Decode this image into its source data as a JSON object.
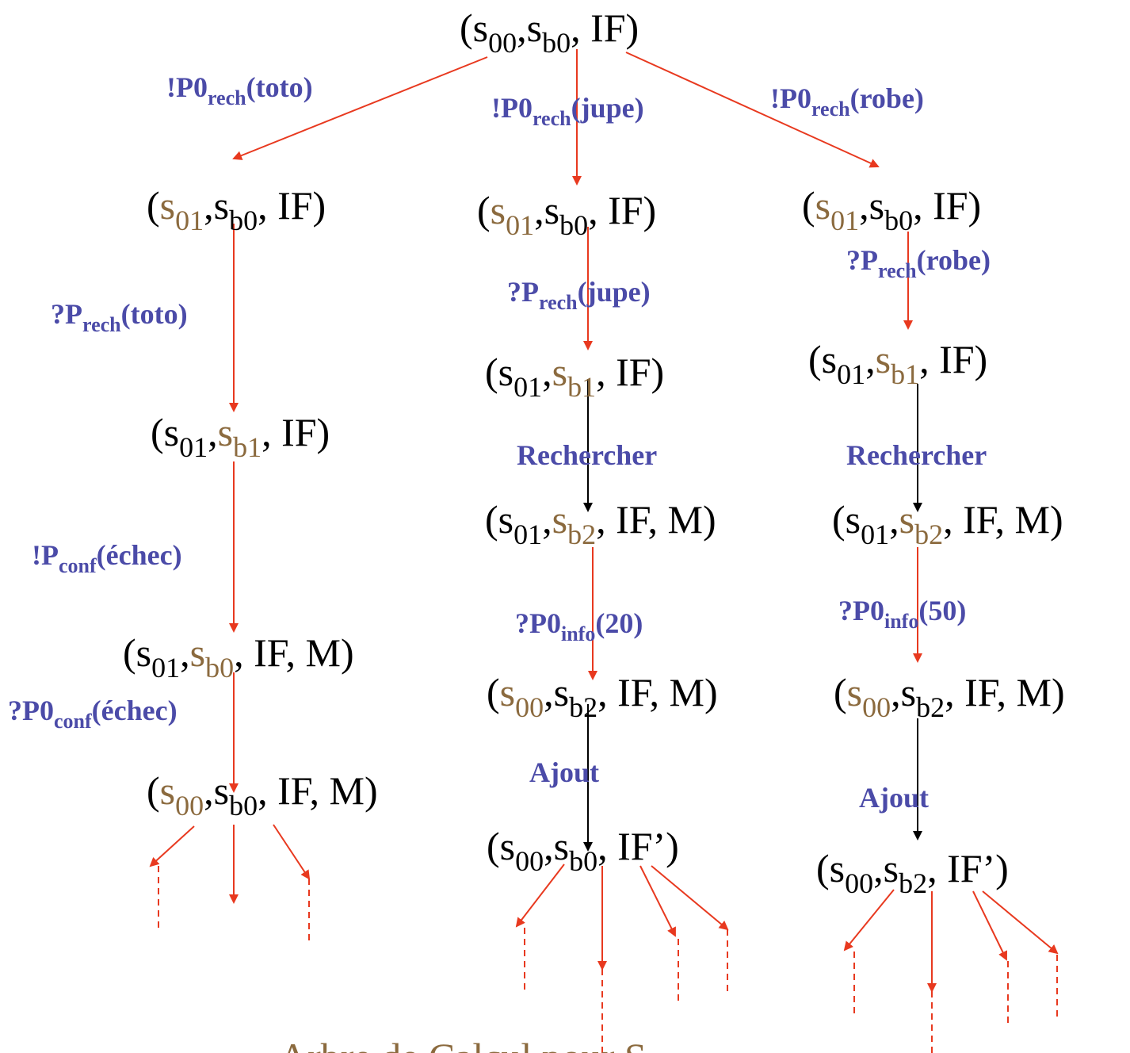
{
  "colors": {
    "state_text": "#000000",
    "highlight": "#8B6A3E",
    "label": "#4B4BA8",
    "transition_arrow": "#E8391F",
    "internal_arrow": "#000000"
  },
  "states": {
    "root": [
      {
        "t": "(s"
      },
      {
        "sub": "00"
      },
      {
        "t": ","
      },
      {
        "t": "s"
      },
      {
        "sub": "b0"
      },
      {
        "t": ", IF)"
      }
    ],
    "l1": [
      {
        "t": "(",
        "h": false
      },
      {
        "t": "s",
        "h": true
      },
      {
        "sub": "01",
        "h": true
      },
      {
        "t": ","
      },
      {
        "t": "s"
      },
      {
        "sub": "b0"
      },
      {
        "t": ", IF)"
      }
    ],
    "l2": [
      {
        "t": "(s"
      },
      {
        "sub": "01"
      },
      {
        "t": ","
      },
      {
        "t": "s",
        "h": true
      },
      {
        "sub": "b1",
        "h": true
      },
      {
        "t": ", IF)"
      }
    ],
    "l3": [
      {
        "t": "(s"
      },
      {
        "sub": "01"
      },
      {
        "t": ","
      },
      {
        "t": "s",
        "h": true
      },
      {
        "sub": "b0",
        "h": true
      },
      {
        "t": ", IF, M)"
      }
    ],
    "l4": [
      {
        "t": "("
      },
      {
        "t": "s",
        "h": true
      },
      {
        "sub": "00",
        "h": true
      },
      {
        "t": ","
      },
      {
        "t": "s"
      },
      {
        "sub": "b0"
      },
      {
        "t": ", IF, M)"
      }
    ],
    "m1": [
      {
        "t": "("
      },
      {
        "t": "s",
        "h": true
      },
      {
        "sub": "01",
        "h": true
      },
      {
        "t": ","
      },
      {
        "t": "s"
      },
      {
        "sub": "b0"
      },
      {
        "t": ", IF)"
      }
    ],
    "m2": [
      {
        "t": "(s"
      },
      {
        "sub": "01"
      },
      {
        "t": ","
      },
      {
        "t": "s",
        "h": true
      },
      {
        "sub": "b1",
        "h": true
      },
      {
        "t": ", IF)"
      }
    ],
    "m3": [
      {
        "t": "(s"
      },
      {
        "sub": "01"
      },
      {
        "t": ","
      },
      {
        "t": "s",
        "h": true
      },
      {
        "sub": "b2",
        "h": true
      },
      {
        "t": ", IF, M)"
      }
    ],
    "m4": [
      {
        "t": "("
      },
      {
        "t": "s",
        "h": true
      },
      {
        "sub": "00",
        "h": true
      },
      {
        "t": ","
      },
      {
        "t": "s"
      },
      {
        "sub": "b2"
      },
      {
        "t": ", IF, M)"
      }
    ],
    "m5": [
      {
        "t": "(s"
      },
      {
        "sub": "00"
      },
      {
        "t": ","
      },
      {
        "t": "s"
      },
      {
        "sub": "b0"
      },
      {
        "t": ", IF’)"
      }
    ],
    "r1": [
      {
        "t": "("
      },
      {
        "t": "s",
        "h": true
      },
      {
        "sub": "01",
        "h": true
      },
      {
        "t": ","
      },
      {
        "t": "s"
      },
      {
        "sub": "b0"
      },
      {
        "t": ", IF)"
      }
    ],
    "r2": [
      {
        "t": "(s"
      },
      {
        "sub": "01"
      },
      {
        "t": ","
      },
      {
        "t": "s",
        "h": true
      },
      {
        "sub": "b1",
        "h": true
      },
      {
        "t": ", IF)"
      }
    ],
    "r3": [
      {
        "t": "(s"
      },
      {
        "sub": "01"
      },
      {
        "t": ","
      },
      {
        "t": "s",
        "h": true
      },
      {
        "sub": "b2",
        "h": true
      },
      {
        "t": ", IF, M)"
      }
    ],
    "r4": [
      {
        "t": "("
      },
      {
        "t": "s",
        "h": true
      },
      {
        "sub": "00",
        "h": true
      },
      {
        "t": ","
      },
      {
        "t": "s"
      },
      {
        "sub": "b2"
      },
      {
        "t": ", IF, M)"
      }
    ],
    "r5": [
      {
        "t": "(s"
      },
      {
        "sub": "00"
      },
      {
        "t": ","
      },
      {
        "t": "s"
      },
      {
        "sub": "b2"
      },
      {
        "t": ", IF’)"
      }
    ]
  },
  "labels": {
    "root_left": [
      {
        "t": "!P0"
      },
      {
        "sub": "rech"
      },
      {
        "t": "(toto)"
      }
    ],
    "root_mid": [
      {
        "t": "!P0"
      },
      {
        "sub": "rech"
      },
      {
        "t": "(jupe)"
      }
    ],
    "root_right": [
      {
        "t": "!P0"
      },
      {
        "sub": "rech"
      },
      {
        "t": "(robe)"
      }
    ],
    "l_rech": [
      {
        "t": "?P"
      },
      {
        "sub": "rech"
      },
      {
        "t": "(toto)"
      }
    ],
    "l_conf": [
      {
        "t": "!P"
      },
      {
        "sub": "conf"
      },
      {
        "t": "(échec)"
      }
    ],
    "l_conf0": [
      {
        "t": "?P0"
      },
      {
        "sub": "conf"
      },
      {
        "t": "(échec)"
      }
    ],
    "m_rech": [
      {
        "t": "?P"
      },
      {
        "sub": "rech"
      },
      {
        "t": "(jupe)"
      }
    ],
    "m_search": [
      {
        "t": "Rechercher"
      }
    ],
    "m_info": [
      {
        "t": "?P0"
      },
      {
        "sub": "info"
      },
      {
        "t": "(20)"
      }
    ],
    "m_add": [
      {
        "t": "Ajout"
      }
    ],
    "r_rech": [
      {
        "t": "?P"
      },
      {
        "sub": "rech"
      },
      {
        "t": "(robe)"
      }
    ],
    "r_search": [
      {
        "t": "Rechercher"
      }
    ],
    "r_info": [
      {
        "t": "?P0"
      },
      {
        "sub": "info"
      },
      {
        "t": "(50)"
      }
    ],
    "r_add": [
      {
        "t": "Ajout"
      }
    ]
  },
  "caption": "Arbre de Calcul pour S"
}
